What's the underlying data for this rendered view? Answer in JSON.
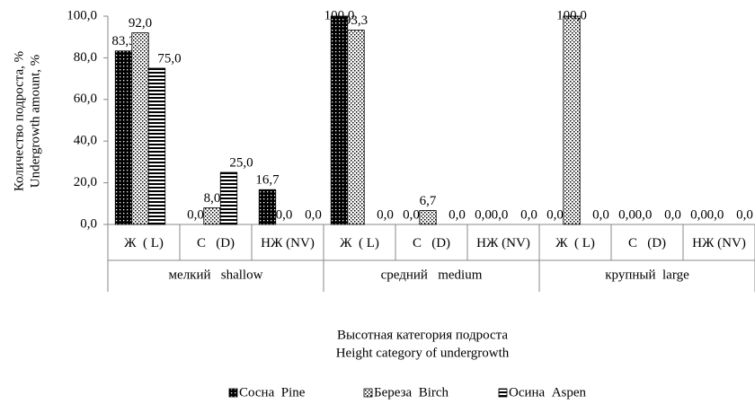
{
  "chart_data": {
    "type": "bar",
    "y_label": [
      "Количество подроста, %",
      "Undergrowth amount, %"
    ],
    "x_label": [
      "Высотная категория подроста",
      "Height category of undergrowth"
    ],
    "categories": [
      "Ж  ( L)",
      "С   (D)",
      "НЖ (NV)",
      "Ж  ( L)",
      "С   (D)",
      "НЖ (NV)",
      "Ж  ( L)",
      "С   (D)",
      "НЖ (NV)"
    ],
    "groups": [
      "мелкий   shallow",
      "средний   medium",
      "крупный  large"
    ],
    "series": [
      {
        "name": "Сосна  Pine",
        "color": "#000000",
        "values": [
          83.3,
          0,
          16.7,
          100,
          0,
          0,
          0,
          0,
          0
        ],
        "value_labels": [
          "83,3",
          "0,0",
          "16,7",
          "100,0",
          "0,0",
          "0,0",
          "0,0",
          "0,0",
          "0,0"
        ]
      },
      {
        "name": "Береза  Birch",
        "color": "#000000",
        "values": [
          92,
          8,
          0,
          93.3,
          6.7,
          0,
          100,
          0,
          0
        ],
        "value_labels": [
          "92,0",
          "8,0",
          "0,0",
          "93,3",
          "6,7",
          "0,0",
          "100,0",
          "0,0",
          "0,0"
        ]
      },
      {
        "name": "Осина  Aspen",
        "color": "#000000",
        "values": [
          75,
          25,
          0,
          0,
          0,
          0,
          0,
          0,
          0
        ],
        "value_labels": [
          "75,0",
          "25,0",
          "0,0",
          "0,0",
          "0,0",
          "0,0",
          "0,0",
          "0,0",
          "0,0"
        ]
      }
    ],
    "ylim": [
      0,
      100
    ],
    "yticks": [
      {
        "value": 0,
        "label": "0,0"
      },
      {
        "value": 20,
        "label": "20,0"
      },
      {
        "value": 40,
        "label": "40,0"
      },
      {
        "value": 60,
        "label": "60,0"
      },
      {
        "value": 80,
        "label": "80,0"
      },
      {
        "value": 100,
        "label": "100,0"
      }
    ],
    "grid": false,
    "legend": "bottom"
  }
}
